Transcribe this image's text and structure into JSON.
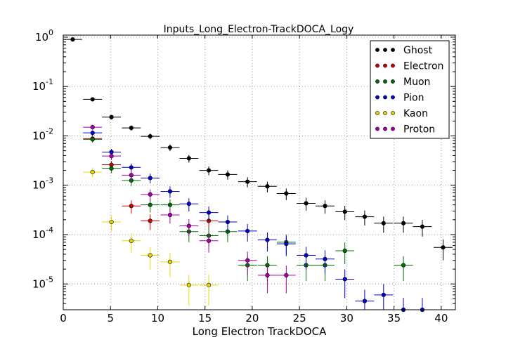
{
  "chart_data": {
    "type": "scatter",
    "title": "Inputs_Long_Electron-TrackDOCA_Logy",
    "xlabel": "Long Electron TrackDOCA",
    "ylabel": "",
    "xlim": [
      0,
      41.5
    ],
    "ylim": [
      3e-06,
      1.1
    ],
    "yscale": "log",
    "x_ticks": [
      "0",
      "5",
      "10",
      "15",
      "20",
      "25",
      "30",
      "35",
      "40"
    ],
    "y_ticks": [
      {
        "base": "10",
        "exp": "0"
      },
      {
        "base": "10",
        "exp": "-1"
      },
      {
        "base": "10",
        "exp": "-2"
      },
      {
        "base": "10",
        "exp": "-3"
      },
      {
        "base": "10",
        "exp": "-4"
      },
      {
        "base": "10",
        "exp": "-5"
      }
    ],
    "grid": true,
    "legend_position": "top-right",
    "bin_half_width": 1.0,
    "series": [
      {
        "name": "Ghost",
        "color": "#000000",
        "points": [
          {
            "x": 1.0,
            "y": 0.9
          },
          {
            "x": 3.1,
            "y": 0.055
          },
          {
            "x": 5.1,
            "y": 0.024
          },
          {
            "x": 7.2,
            "y": 0.0145
          },
          {
            "x": 9.2,
            "y": 0.0098
          },
          {
            "x": 11.3,
            "y": 0.0058
          },
          {
            "x": 13.3,
            "y": 0.0035
          },
          {
            "x": 15.4,
            "y": 0.002
          },
          {
            "x": 17.4,
            "y": 0.00165
          },
          {
            "x": 19.5,
            "y": 0.00118
          },
          {
            "x": 21.6,
            "y": 0.00095
          },
          {
            "x": 23.6,
            "y": 0.00068
          },
          {
            "x": 25.7,
            "y": 0.00043
          },
          {
            "x": 27.7,
            "y": 0.00038
          },
          {
            "x": 29.8,
            "y": 0.00029
          },
          {
            "x": 31.9,
            "y": 0.00023
          },
          {
            "x": 33.9,
            "y": 0.00017
          },
          {
            "x": 36.0,
            "y": 0.00017
          },
          {
            "x": 38.0,
            "y": 0.000145
          },
          {
            "x": 40.2,
            "y": 5.5e-05
          }
        ]
      },
      {
        "name": "Electron",
        "color": "#cc0000",
        "points": [
          {
            "x": 3.1,
            "y": 0.0088
          },
          {
            "x": 5.1,
            "y": 0.0026
          },
          {
            "x": 7.2,
            "y": 0.00038
          },
          {
            "x": 9.2,
            "y": 0.00019
          },
          {
            "x": 15.4,
            "y": 0.00019
          }
        ]
      },
      {
        "name": "Muon",
        "color": "#007000",
        "points": [
          {
            "x": 3.1,
            "y": 0.0085
          },
          {
            "x": 5.1,
            "y": 0.0022
          },
          {
            "x": 7.2,
            "y": 0.00125
          },
          {
            "x": 9.2,
            "y": 0.0004
          },
          {
            "x": 11.3,
            "y": 0.0004
          },
          {
            "x": 13.3,
            "y": 0.000115
          },
          {
            "x": 15.4,
            "y": 9.5e-05
          },
          {
            "x": 17.4,
            "y": 0.000115
          },
          {
            "x": 19.5,
            "y": 2.4e-05
          },
          {
            "x": 21.6,
            "y": 2.4e-05
          },
          {
            "x": 23.6,
            "y": 7e-05
          },
          {
            "x": 25.7,
            "y": 2.4e-05
          },
          {
            "x": 27.7,
            "y": 2.4e-05
          },
          {
            "x": 29.8,
            "y": 4.7e-05
          },
          {
            "x": 36.0,
            "y": 2.4e-05
          }
        ]
      },
      {
        "name": "Pion",
        "color": "#0000cc",
        "points": [
          {
            "x": 3.1,
            "y": 0.0115
          },
          {
            "x": 5.1,
            "y": 0.0047
          },
          {
            "x": 7.2,
            "y": 0.0023
          },
          {
            "x": 9.2,
            "y": 0.0014
          },
          {
            "x": 11.3,
            "y": 0.00075
          },
          {
            "x": 13.3,
            "y": 0.00042
          },
          {
            "x": 15.4,
            "y": 0.00028
          },
          {
            "x": 17.4,
            "y": 0.00018
          },
          {
            "x": 19.5,
            "y": 0.000118
          },
          {
            "x": 21.6,
            "y": 7.8e-05
          },
          {
            "x": 23.6,
            "y": 6.5e-05
          },
          {
            "x": 25.7,
            "y": 3.8e-05
          },
          {
            "x": 27.7,
            "y": 3.2e-05
          },
          {
            "x": 29.8,
            "y": 1.25e-05
          },
          {
            "x": 31.9,
            "y": 4.5e-06
          },
          {
            "x": 33.9,
            "y": 6e-06
          },
          {
            "x": 36.0,
            "y": 3e-06
          },
          {
            "x": 38.0,
            "y": 3e-06
          }
        ]
      },
      {
        "name": "Kaon",
        "color": "#e8d800",
        "points": [
          {
            "x": 3.1,
            "y": 0.00185
          },
          {
            "x": 5.1,
            "y": 0.00018
          },
          {
            "x": 7.2,
            "y": 7.5e-05
          },
          {
            "x": 9.2,
            "y": 3.8e-05
          },
          {
            "x": 11.3,
            "y": 2.8e-05
          },
          {
            "x": 13.3,
            "y": 9.5e-06
          },
          {
            "x": 15.4,
            "y": 9.5e-06
          }
        ]
      },
      {
        "name": "Proton",
        "color": "#aa00aa",
        "points": [
          {
            "x": 3.1,
            "y": 0.015
          },
          {
            "x": 5.1,
            "y": 0.0039
          },
          {
            "x": 7.2,
            "y": 0.0016
          },
          {
            "x": 9.2,
            "y": 0.00065
          },
          {
            "x": 11.3,
            "y": 0.00025
          },
          {
            "x": 13.3,
            "y": 0.00015
          },
          {
            "x": 15.4,
            "y": 7.5e-05
          },
          {
            "x": 19.5,
            "y": 3e-05
          },
          {
            "x": 21.6,
            "y": 1.5e-05
          },
          {
            "x": 23.6,
            "y": 1.5e-05
          }
        ]
      }
    ]
  }
}
